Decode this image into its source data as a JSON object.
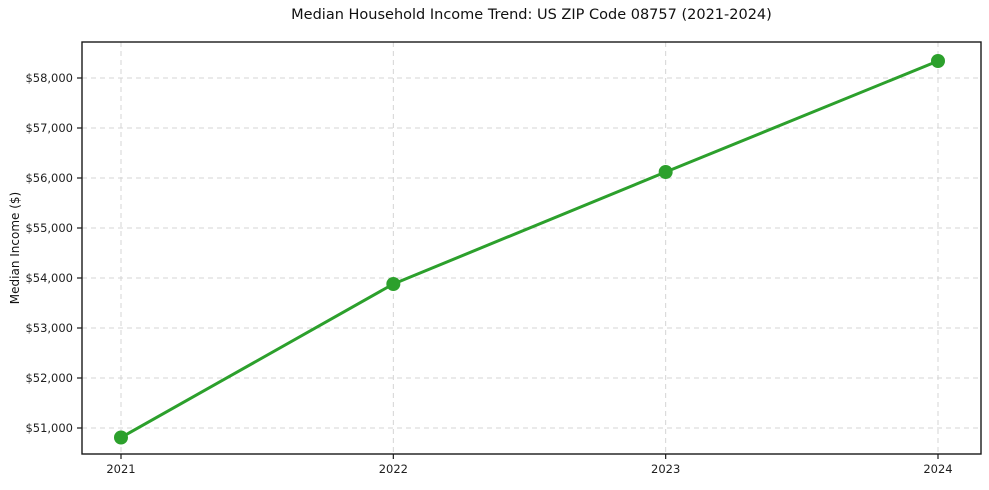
{
  "chart_data": {
    "type": "line",
    "title": "Median Household Income Trend: US ZIP Code 08757 (2021-2024)",
    "xlabel": "",
    "ylabel": "Median Income ($)",
    "categories": [
      "2021",
      "2022",
      "2023",
      "2024"
    ],
    "values": [
      50810,
      53880,
      56120,
      58340
    ],
    "ylim": [
      50480,
      58720
    ],
    "yticks": [
      51000,
      52000,
      53000,
      54000,
      55000,
      56000,
      57000,
      58000
    ],
    "ytick_prefix": "$",
    "legend": "none",
    "grid": {
      "visible": true,
      "style": "dashed",
      "directions": "both",
      "color": "#d4d4d4"
    },
    "line_color": "#2ca02c",
    "marker": "circle",
    "marker_color": "#2ca02c",
    "axis_color": "#1a1a1a",
    "text_color": "#1f1f1f",
    "background_color": "#ffffff"
  }
}
